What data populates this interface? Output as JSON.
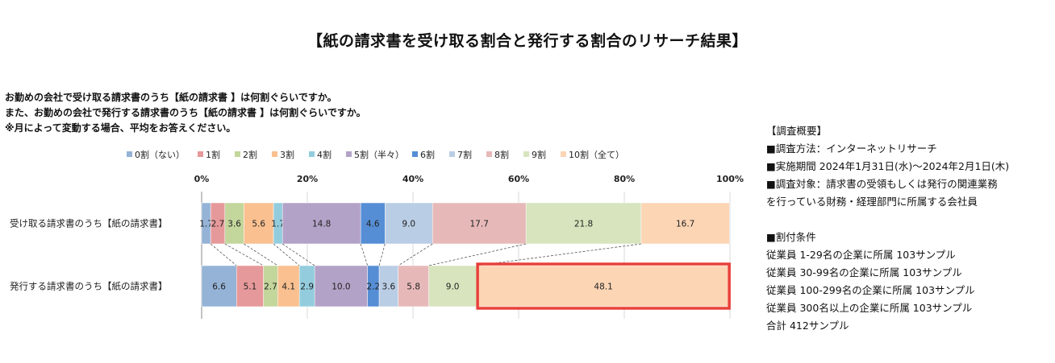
{
  "title": "【紙の請求書を受け取る割合と発行する割合のリサーチ結果】",
  "question": [
    "お勤めの会社で受け取る請求書のうち【紙の請求書 】は何割ぐらいですか。",
    "また、お勤めの会社で発行する請求書のうち【紙の請求書 】は何割ぐらいですか。",
    "※月によって変動する場合、平均をお答えください。"
  ],
  "summary": {
    "overview": [
      "【調査概要】",
      "■調査方法：インターネットリサーチ",
      "■実施期間 2024年1月31日(水)～2024年2月1日(木)",
      "■調査対象：請求書の受領もしくは発行の関連業務",
      "を行っている財務・経理部門に所属する会社員"
    ],
    "quota": [
      "■割付条件",
      "従業員 1-29名の企業に所属 103サンプル",
      "従業員 30-99名の企業に所属 103サンプル",
      "従業員 100-299名の企業に所属 103サンプル",
      "従業員 300名以上の企業に所属 103サンプル",
      "合計 412サンプル"
    ]
  },
  "chart_data": {
    "type": "bar",
    "orientation": "horizontal",
    "stacked": "percent",
    "xlim": [
      0,
      100
    ],
    "x_ticks": [
      "0%",
      "20%",
      "40%",
      "60%",
      "80%",
      "100%"
    ],
    "grid": true,
    "legend_position": "top",
    "categories": [
      "受け取る請求書のうち【紙の請求書】",
      "発行する請求書のうち【紙の請求書】"
    ],
    "series": [
      {
        "name": "0割（ない）",
        "color": "#95b3d7",
        "values": [
          1.7,
          6.6
        ]
      },
      {
        "name": "1割",
        "color": "#e6999a",
        "values": [
          2.7,
          5.1
        ]
      },
      {
        "name": "2割",
        "color": "#c3d69b",
        "values": [
          3.6,
          2.7
        ]
      },
      {
        "name": "3割",
        "color": "#fac090",
        "values": [
          5.6,
          4.1
        ]
      },
      {
        "name": "4割",
        "color": "#93cddd",
        "values": [
          1.7,
          2.9
        ]
      },
      {
        "name": "5割（半々）",
        "color": "#b3a2c7",
        "values": [
          14.8,
          10.0
        ]
      },
      {
        "name": "6割",
        "color": "#558ed5",
        "values": [
          4.6,
          2.2
        ]
      },
      {
        "name": "7割",
        "color": "#b9cde5",
        "values": [
          9.0,
          3.6
        ]
      },
      {
        "name": "8割",
        "color": "#e6b9b8",
        "values": [
          17.7,
          5.8
        ]
      },
      {
        "name": "9割",
        "color": "#d7e4bd",
        "values": [
          21.8,
          9.0
        ]
      },
      {
        "name": "10割（全て）",
        "color": "#fcd5b5",
        "values": [
          16.7,
          48.1
        ]
      }
    ],
    "highlight": {
      "series": "10割（全て）",
      "category": "発行する請求書のうち【紙の請求書】",
      "color": "#e8403a"
    }
  }
}
